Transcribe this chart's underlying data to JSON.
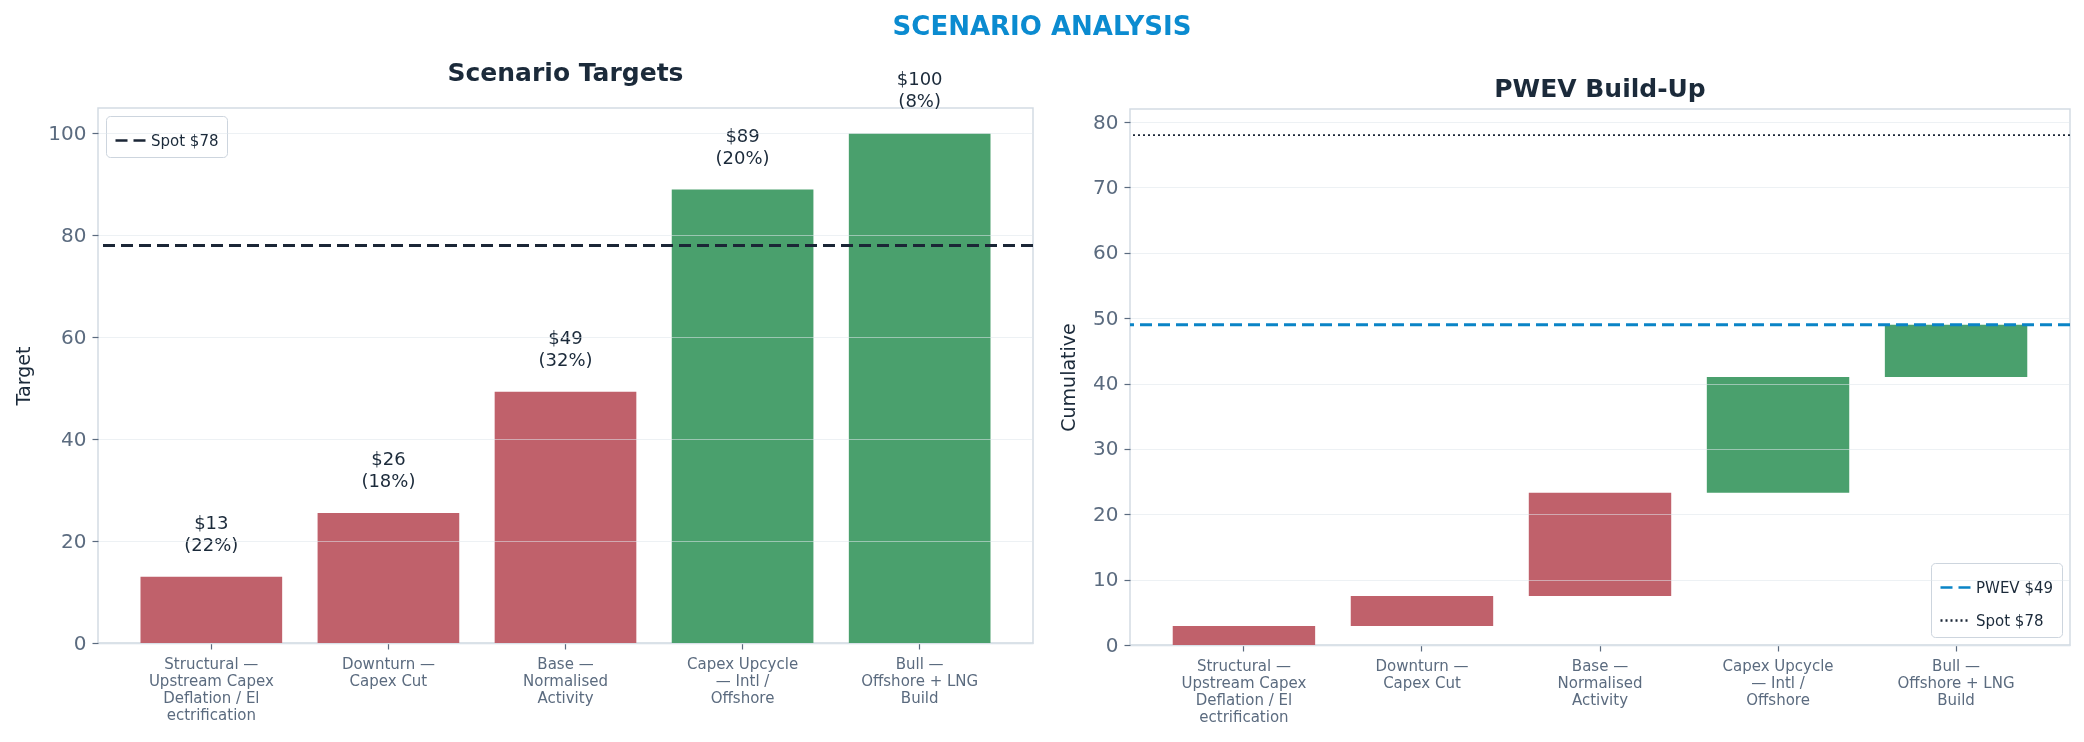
{
  "chart_data": [
    {
      "type": "bar",
      "title": "Scenario Targets",
      "ylabel": "Target",
      "annotations": [
        "SCENARIO ANALYSIS"
      ],
      "categories": [
        "Structural —\nUpstream Capex\nDeflation / El\nectrification",
        "Downturn —\nCapex Cut",
        "Base —\nNormalised\nActivity",
        "Capex Upcycle\n— Intl /\nOffshore",
        "Bull —\nOffshore + LNG\nBuild"
      ],
      "values": [
        13,
        25.5,
        49.3,
        89,
        100
      ],
      "colors": [
        "#c0616b",
        "#c0616b",
        "#c0616b",
        "#4aa06d",
        "#4aa06d"
      ],
      "value_labels": [
        "$13\n(22%)",
        "$26\n(18%)",
        "$49\n(32%)",
        "$89\n(20%)",
        "$100\n(8%)"
      ],
      "ylim": [
        0,
        105
      ],
      "yticks": [
        0,
        20,
        40,
        60,
        80,
        100
      ],
      "grid": "y",
      "legend": "top left",
      "ref_lines": [
        {
          "axis": "y",
          "value": 78,
          "label": "Spot $78",
          "color": "#1b2636",
          "line_style": "dashed"
        }
      ]
    },
    {
      "type": "bar",
      "title": "PWEV Build-Up",
      "ylabel": "Cumulative",
      "categories": [
        "Structural —\nUpstream Capex\nDeflation / El\nectrification",
        "Downturn —\nCapex Cut",
        "Base —\nNormalised\nActivity",
        "Capex Upcycle\n— Intl /\nOffshore",
        "Bull —\nOffshore + LNG\nBuild"
      ],
      "values": [
        2.9,
        4.6,
        15.8,
        17.7,
        8.0
      ],
      "base": [
        0,
        2.9,
        7.5,
        23.3,
        41.0
      ],
      "colors": [
        "#c0616b",
        "#c0616b",
        "#c0616b",
        "#4aa06d",
        "#4aa06d"
      ],
      "ylim": [
        0,
        82
      ],
      "yticks": [
        0,
        10,
        20,
        30,
        40,
        50,
        60,
        70,
        80
      ],
      "grid": "y",
      "legend": "bottom right",
      "ref_lines": [
        {
          "axis": "y",
          "value": 49,
          "label": "PWEV $49",
          "color": "#0a84c6",
          "line_style": "dashed"
        },
        {
          "axis": "y",
          "value": 78,
          "label": "Spot $78",
          "color": "#1b2636",
          "line_style": "dotted"
        }
      ]
    }
  ]
}
